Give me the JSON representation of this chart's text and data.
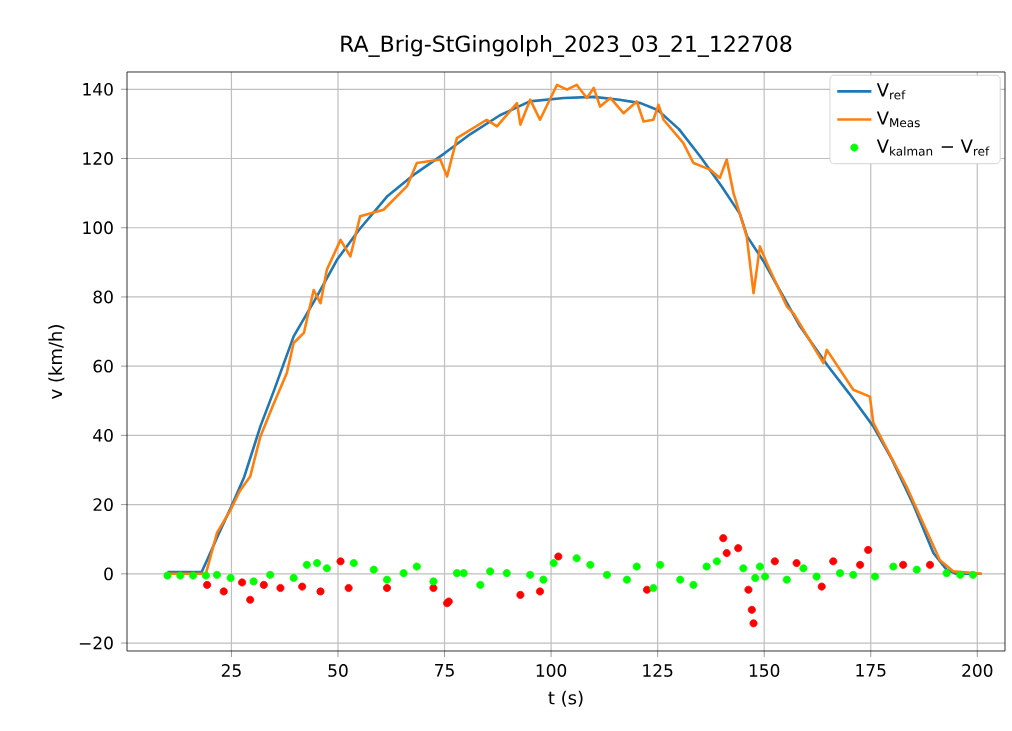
{
  "chart_data": {
    "type": "line",
    "title": "RA_Brig-StGingolph_2023_03_21_122708",
    "xlabel": "t (s)",
    "ylabel": "v (km/h)",
    "xlim": [
      0.5,
      206.5
    ],
    "ylim": [
      -22.3,
      145
    ],
    "xticks": [
      25,
      50,
      75,
      100,
      125,
      150,
      175,
      200
    ],
    "yticks": [
      {
        "value": -20,
        "label": "−20"
      },
      0,
      20,
      40,
      60,
      80,
      100,
      120,
      140
    ],
    "grid": true,
    "legend": "top right",
    "marker": "circle",
    "line_style": "solid",
    "series": [
      {
        "name": "V$_{ref}$",
        "color": "#1f77b4",
        "marker": "none",
        "x": [
          10,
          18,
          19.3,
          22,
          25,
          28,
          31.8,
          35,
          39.6,
          45,
          49.8,
          55,
          61.5,
          68,
          75,
          81,
          88,
          95,
          103,
          110,
          116,
          121,
          125,
          130,
          135,
          140,
          144.3,
          146,
          150,
          155,
          158.4,
          165,
          170,
          175.6,
          180,
          185,
          189.7,
          192.8,
          195,
          201
        ],
        "values": [
          0.5,
          0.5,
          4,
          11.5,
          19.5,
          28,
          42.6,
          53,
          68.6,
          80,
          90.8,
          99.5,
          109,
          115.5,
          121.5,
          127,
          132.5,
          136.5,
          137.5,
          137.8,
          137,
          136,
          134,
          128.5,
          120.6,
          112,
          104,
          97.5,
          90,
          79,
          71.5,
          60,
          52,
          42.6,
          33,
          20,
          6,
          1.2,
          0,
          0
        ]
      },
      {
        "name": "V$_{Meas}$",
        "color": "#ff7f0e",
        "marker": "none",
        "x": [
          10,
          19,
          21.6,
          24.8,
          27,
          29.4,
          31.8,
          33.4,
          34.6,
          38,
          39.6,
          42,
          44.3,
          45.9,
          47.4,
          50.6,
          52.9,
          55.2,
          60.7,
          66.2,
          68.5,
          74,
          75.6,
          77.9,
          84.9,
          87.3,
          92,
          92.8,
          95.1,
          97.4,
          101.4,
          103.7,
          106,
          108.4,
          110,
          111.5,
          113.9,
          117,
          120.1,
          121.7,
          124,
          125.2,
          126.4,
          131,
          133.4,
          137.3,
          139.6,
          141.2,
          142.8,
          145.9,
          147.5,
          149,
          150.6,
          155.3,
          157,
          163.9,
          164.7,
          170.9,
          174.8,
          175.6,
          183.4,
          191.2,
          194.4,
          201
        ],
        "values": [
          0,
          0,
          11.8,
          18.5,
          24,
          28.1,
          39.7,
          44.5,
          48.2,
          58,
          66.7,
          69.6,
          82,
          78.2,
          87.9,
          96.5,
          91.7,
          103.3,
          105.2,
          112,
          118.7,
          119.7,
          114.8,
          125.9,
          131.2,
          129.3,
          136,
          129.8,
          137,
          131.2,
          141.3,
          139.9,
          141.3,
          137.5,
          140.4,
          135,
          137.5,
          133.1,
          136.5,
          130.7,
          131.2,
          135.5,
          131.2,
          124.5,
          118.7,
          116.8,
          114.4,
          119.7,
          110,
          97.5,
          81.1,
          94.6,
          89.8,
          77.3,
          75,
          60.9,
          64.7,
          53.2,
          51.2,
          43.6,
          25.2,
          4,
          0.7,
          0
        ]
      },
      {
        "color": "#ff0000",
        "type": "scatter",
        "x": [
          19.3,
          23.2,
          27.5,
          29.4,
          32.6,
          36.5,
          41.6,
          45.9,
          50.6,
          52.5,
          61.5,
          72.4,
          75.6,
          76,
          92.8,
          97.4,
          101.7,
          122.5,
          140.4,
          141.2,
          143.9,
          146.3,
          147.1,
          147.5,
          152.5,
          157.6,
          163.5,
          166.2,
          172.5,
          174.4,
          182.6,
          188.9
        ],
        "values": [
          -3.2,
          -5.1,
          -2.5,
          -7.5,
          -3.2,
          -4.1,
          -3.7,
          -5.1,
          3.6,
          -4.1,
          -4.1,
          -4.1,
          -8.5,
          -8,
          -6.1,
          -5.1,
          5,
          -4.6,
          10.3,
          6,
          7.4,
          -4.6,
          -10.4,
          -14.3,
          3.6,
          3.1,
          -3.7,
          3.6,
          2.6,
          6.9,
          2.6,
          2.6
        ]
      },
      {
        "name": "V$_{kalman}$ − V$_{ref}$",
        "color": "#00ff00",
        "type": "scatter",
        "x": [
          10,
          13,
          16,
          19,
          21.6,
          24.8,
          30.2,
          34.1,
          39.6,
          42.7,
          45.1,
          47.4,
          53.7,
          58.4,
          61.5,
          65.4,
          68.5,
          72.4,
          77.9,
          79.5,
          83.4,
          85.7,
          89.6,
          95.1,
          98.2,
          100.6,
          106,
          109.2,
          113.1,
          117.8,
          120.1,
          124,
          125.6,
          130.3,
          133.4,
          136.5,
          138.9,
          145.1,
          147.9,
          149,
          150.2,
          155.3,
          159.2,
          162.3,
          167.8,
          170.9,
          176,
          180.3,
          185.8,
          192.8,
          196,
          199
        ],
        "values": [
          -0.5,
          -0.5,
          -0.5,
          -0.5,
          -0.3,
          -1.2,
          -2.2,
          -0.3,
          -1.2,
          2.6,
          3.1,
          1.6,
          3.1,
          1.2,
          -1.7,
          0.2,
          2.1,
          -2.2,
          0.2,
          0.2,
          -3.2,
          0.7,
          0.2,
          -0.3,
          -1.7,
          3.1,
          4.5,
          2.6,
          -0.3,
          -1.7,
          2.1,
          -4.1,
          2.6,
          -1.7,
          -3.2,
          2.1,
          3.6,
          1.6,
          -1.2,
          2.1,
          -0.8,
          -1.7,
          1.6,
          -0.8,
          0.2,
          -0.3,
          -0.8,
          2.1,
          1.2,
          0.2,
          -0.3,
          -0.3
        ]
      }
    ]
  }
}
